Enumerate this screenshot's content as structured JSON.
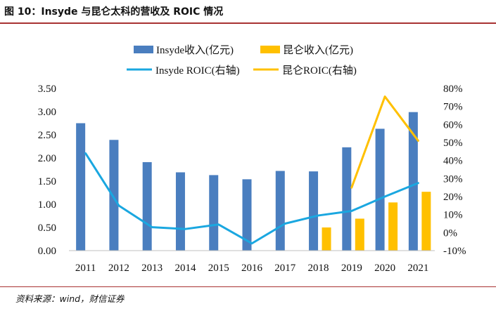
{
  "header": {
    "title": "图 10：Insyde 与昆仑太科的营收及 ROIC 情况"
  },
  "footer": {
    "source": "资料来源：wind，财信证券"
  },
  "chart_data": {
    "type": "bar",
    "categories": [
      "2011",
      "2012",
      "2013",
      "2014",
      "2015",
      "2016",
      "2017",
      "2018",
      "2019",
      "2020",
      "2021"
    ],
    "y_left": {
      "min": 0,
      "max": 3.5,
      "ticks": [
        "0.00",
        "0.50",
        "1.00",
        "1.50",
        "2.00",
        "2.50",
        "3.00",
        "3.50"
      ]
    },
    "y_right": {
      "min": -0.1,
      "max": 0.8,
      "ticks": [
        "-10%",
        "0%",
        "10%",
        "20%",
        "30%",
        "40%",
        "50%",
        "60%",
        "70%",
        "80%"
      ]
    },
    "grid": false,
    "legend_position": "top",
    "series": [
      {
        "name": "Insyde收入(亿元)",
        "kind": "bar",
        "axis": "left",
        "color": "#4a7ebf",
        "values": [
          2.75,
          2.39,
          1.91,
          1.69,
          1.63,
          1.54,
          1.72,
          1.71,
          2.23,
          2.63,
          2.99
        ]
      },
      {
        "name": "昆仑收入(亿元)",
        "kind": "bar",
        "axis": "left",
        "color": "#ffc000",
        "values": [
          null,
          null,
          null,
          null,
          null,
          null,
          null,
          0.5,
          0.69,
          1.04,
          1.27
        ]
      },
      {
        "name": "Insyde ROIC(右轴)",
        "kind": "line",
        "axis": "right",
        "color": "#1aa7e0",
        "values": [
          0.44,
          0.15,
          0.03,
          0.02,
          0.045,
          -0.06,
          0.05,
          0.095,
          0.12,
          0.2,
          0.275
        ]
      },
      {
        "name": "昆仑ROIC(右轴)",
        "kind": "line",
        "axis": "right",
        "color": "#ffc000",
        "values": [
          null,
          null,
          null,
          null,
          null,
          null,
          null,
          null,
          0.25,
          0.755,
          0.51
        ]
      }
    ]
  }
}
